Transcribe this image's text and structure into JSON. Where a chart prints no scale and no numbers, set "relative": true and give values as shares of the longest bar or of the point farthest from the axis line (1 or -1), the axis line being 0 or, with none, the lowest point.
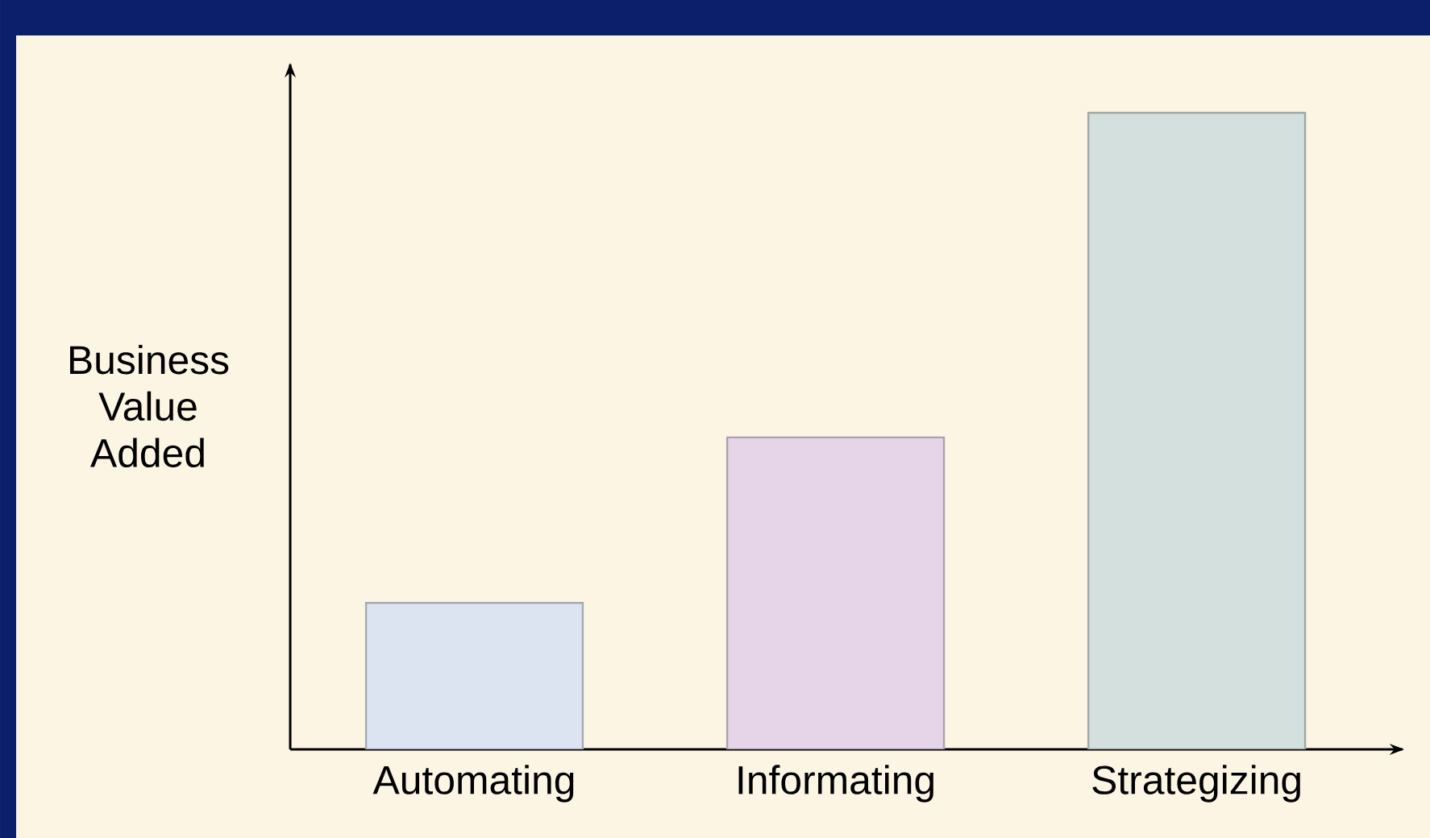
{
  "chart_data": {
    "type": "bar",
    "ylabel": "Business Value Added",
    "categories": [
      "Automating",
      "Informating",
      "Strategizing"
    ],
    "values": [
      0.23,
      0.49,
      1
    ],
    "colors": [
      "#dce4f2",
      "#e6d5e8",
      "#d3e0de"
    ],
    "relative": true
  }
}
